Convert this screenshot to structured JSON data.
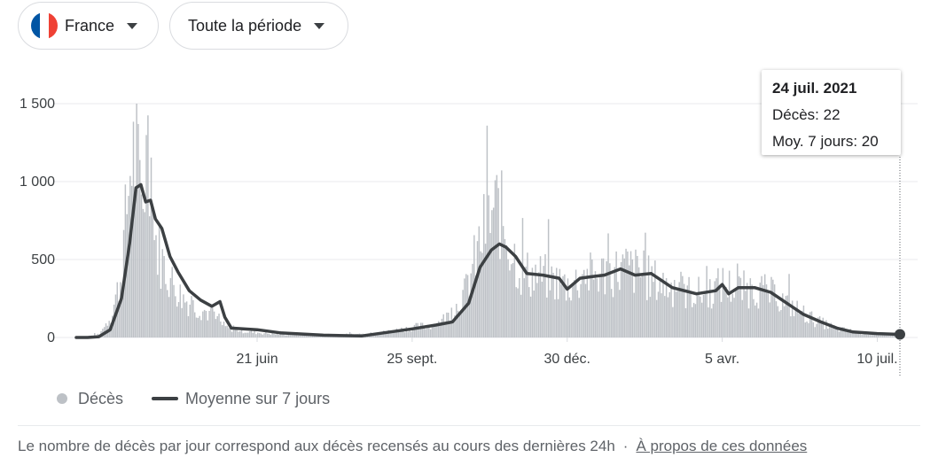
{
  "filters": {
    "country": "France",
    "period": "Toute la période",
    "flag_colors": [
      "#0055a4",
      "#ffffff",
      "#ef4135"
    ]
  },
  "tooltip": {
    "date": "24 juil. 2021",
    "deaths": "Décès: 22",
    "avg": "Moy. 7 jours: 20"
  },
  "legend": {
    "deaths": "Décès",
    "avg": "Moyenne sur 7 jours"
  },
  "footer": {
    "text": "Le nombre de décès par jour correspond aux décès recensés au cours des dernières 24h",
    "separator": "·",
    "link": "À propos de ces données"
  },
  "chart_data": {
    "type": "bar",
    "title": "",
    "xlabel": "",
    "ylabel": "",
    "ylim": [
      0,
      1500
    ],
    "yticks": [
      {
        "value": 0,
        "label": "0"
      },
      {
        "value": 500,
        "label": "500"
      },
      {
        "value": 1000,
        "label": "1 000"
      },
      {
        "value": 1500,
        "label": "1 500"
      }
    ],
    "x_range": [
      "2020-03-01",
      "2021-07-24"
    ],
    "xticks": [
      {
        "date": "2020-06-21",
        "label": "21 juin"
      },
      {
        "date": "2020-09-25",
        "label": "25 sept."
      },
      {
        "date": "2020-12-30",
        "label": "30 déc."
      },
      {
        "date": "2021-04-05",
        "label": "5 avr."
      },
      {
        "date": "2021-07-10",
        "label": "10 juil."
      }
    ],
    "grid": true,
    "legend_position": "bottom-left",
    "colors": {
      "bars": "#bdc1c6",
      "line": "#3c4043",
      "grid": "#e8eaed"
    },
    "daily_deaths_points": [
      [
        "2020-03-01",
        0
      ],
      [
        "2020-03-15",
        20
      ],
      [
        "2020-03-22",
        150
      ],
      [
        "2020-03-28",
        400
      ],
      [
        "2020-04-01",
        900
      ],
      [
        "2020-04-04",
        1300
      ],
      [
        "2020-04-08",
        1100
      ],
      [
        "2020-04-10",
        950
      ],
      [
        "2020-04-15",
        1400
      ],
      [
        "2020-04-18",
        700
      ],
      [
        "2020-04-22",
        550
      ],
      [
        "2020-04-28",
        400
      ],
      [
        "2020-05-05",
        280
      ],
      [
        "2020-05-12",
        220
      ],
      [
        "2020-05-20",
        180
      ],
      [
        "2020-05-27",
        120
      ],
      [
        "2020-06-01",
        70
      ],
      [
        "2020-06-15",
        40
      ],
      [
        "2020-07-01",
        25
      ],
      [
        "2020-08-01",
        15
      ],
      [
        "2020-09-01",
        25
      ],
      [
        "2020-09-25",
        70
      ],
      [
        "2020-10-10",
        90
      ],
      [
        "2020-10-20",
        180
      ],
      [
        "2020-10-27",
        300
      ],
      [
        "2020-11-03",
        550
      ],
      [
        "2020-11-10",
        800
      ],
      [
        "2020-11-17",
        900
      ],
      [
        "2020-11-24",
        650
      ],
      [
        "2020-12-01",
        450
      ],
      [
        "2020-12-15",
        420
      ],
      [
        "2020-12-30",
        360
      ],
      [
        "2021-01-10",
        420
      ],
      [
        "2021-01-25",
        450
      ],
      [
        "2021-02-05",
        480
      ],
      [
        "2021-02-20",
        400
      ],
      [
        "2021-03-10",
        320
      ],
      [
        "2021-03-25",
        300
      ],
      [
        "2021-04-05",
        370
      ],
      [
        "2021-04-15",
        330
      ],
      [
        "2021-04-25",
        340
      ],
      [
        "2021-05-05",
        300
      ],
      [
        "2021-05-20",
        200
      ],
      [
        "2021-06-01",
        120
      ],
      [
        "2021-06-15",
        60
      ],
      [
        "2021-07-01",
        30
      ],
      [
        "2021-07-24",
        22
      ]
    ],
    "series": [
      {
        "name": "Moyenne sur 7 jours",
        "points": [
          [
            "2020-03-01",
            0
          ],
          [
            "2020-03-08",
            0
          ],
          [
            "2020-03-15",
            5
          ],
          [
            "2020-03-22",
            50
          ],
          [
            "2020-03-29",
            250
          ],
          [
            "2020-04-03",
            600
          ],
          [
            "2020-04-07",
            960
          ],
          [
            "2020-04-10",
            980
          ],
          [
            "2020-04-13",
            870
          ],
          [
            "2020-04-16",
            880
          ],
          [
            "2020-04-19",
            760
          ],
          [
            "2020-04-23",
            700
          ],
          [
            "2020-04-28",
            520
          ],
          [
            "2020-05-03",
            420
          ],
          [
            "2020-05-10",
            300
          ],
          [
            "2020-05-17",
            240
          ],
          [
            "2020-05-24",
            200
          ],
          [
            "2020-05-29",
            230
          ],
          [
            "2020-06-01",
            130
          ],
          [
            "2020-06-05",
            60
          ],
          [
            "2020-06-21",
            50
          ],
          [
            "2020-07-05",
            30
          ],
          [
            "2020-08-01",
            15
          ],
          [
            "2020-08-25",
            10
          ],
          [
            "2020-09-25",
            55
          ],
          [
            "2020-10-10",
            80
          ],
          [
            "2020-10-20",
            100
          ],
          [
            "2020-10-30",
            220
          ],
          [
            "2020-11-06",
            450
          ],
          [
            "2020-11-13",
            560
          ],
          [
            "2020-11-18",
            600
          ],
          [
            "2020-11-22",
            580
          ],
          [
            "2020-11-28",
            520
          ],
          [
            "2020-12-05",
            410
          ],
          [
            "2020-12-15",
            400
          ],
          [
            "2020-12-25",
            380
          ],
          [
            "2020-12-30",
            310
          ],
          [
            "2021-01-07",
            380
          ],
          [
            "2021-01-14",
            390
          ],
          [
            "2021-01-22",
            400
          ],
          [
            "2021-02-01",
            440
          ],
          [
            "2021-02-10",
            400
          ],
          [
            "2021-02-20",
            410
          ],
          [
            "2021-03-05",
            320
          ],
          [
            "2021-03-20",
            280
          ],
          [
            "2021-04-01",
            300
          ],
          [
            "2021-04-05",
            340
          ],
          [
            "2021-04-09",
            280
          ],
          [
            "2021-04-15",
            320
          ],
          [
            "2021-04-25",
            320
          ],
          [
            "2021-05-05",
            290
          ],
          [
            "2021-05-15",
            220
          ],
          [
            "2021-05-25",
            150
          ],
          [
            "2021-06-05",
            100
          ],
          [
            "2021-06-15",
            60
          ],
          [
            "2021-06-25",
            35
          ],
          [
            "2021-07-10",
            25
          ],
          [
            "2021-07-24",
            20
          ]
        ]
      }
    ]
  }
}
